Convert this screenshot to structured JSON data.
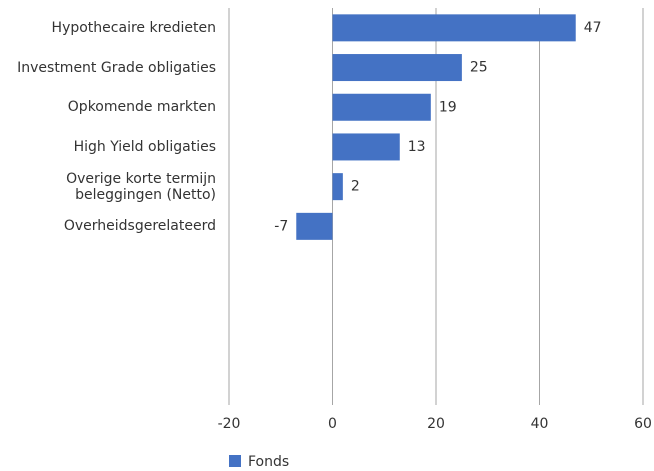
{
  "chart_data": {
    "type": "bar",
    "orientation": "horizontal",
    "categories": [
      "Hypothecaire kredieten",
      "Investment Grade obligaties",
      "Opkomende markten",
      "High Yield obligaties",
      "Overige korte termijn beleggingen (Netto)",
      "Overheidsgerelateerd"
    ],
    "series": [
      {
        "name": "Fonds",
        "color": "#4472c4",
        "values": [
          47,
          25,
          19,
          13,
          2,
          -7
        ]
      }
    ],
    "xlim": [
      -20,
      60
    ],
    "xticks": [
      -20,
      0,
      20,
      40,
      60
    ],
    "grid": true,
    "legend": "bottom"
  }
}
